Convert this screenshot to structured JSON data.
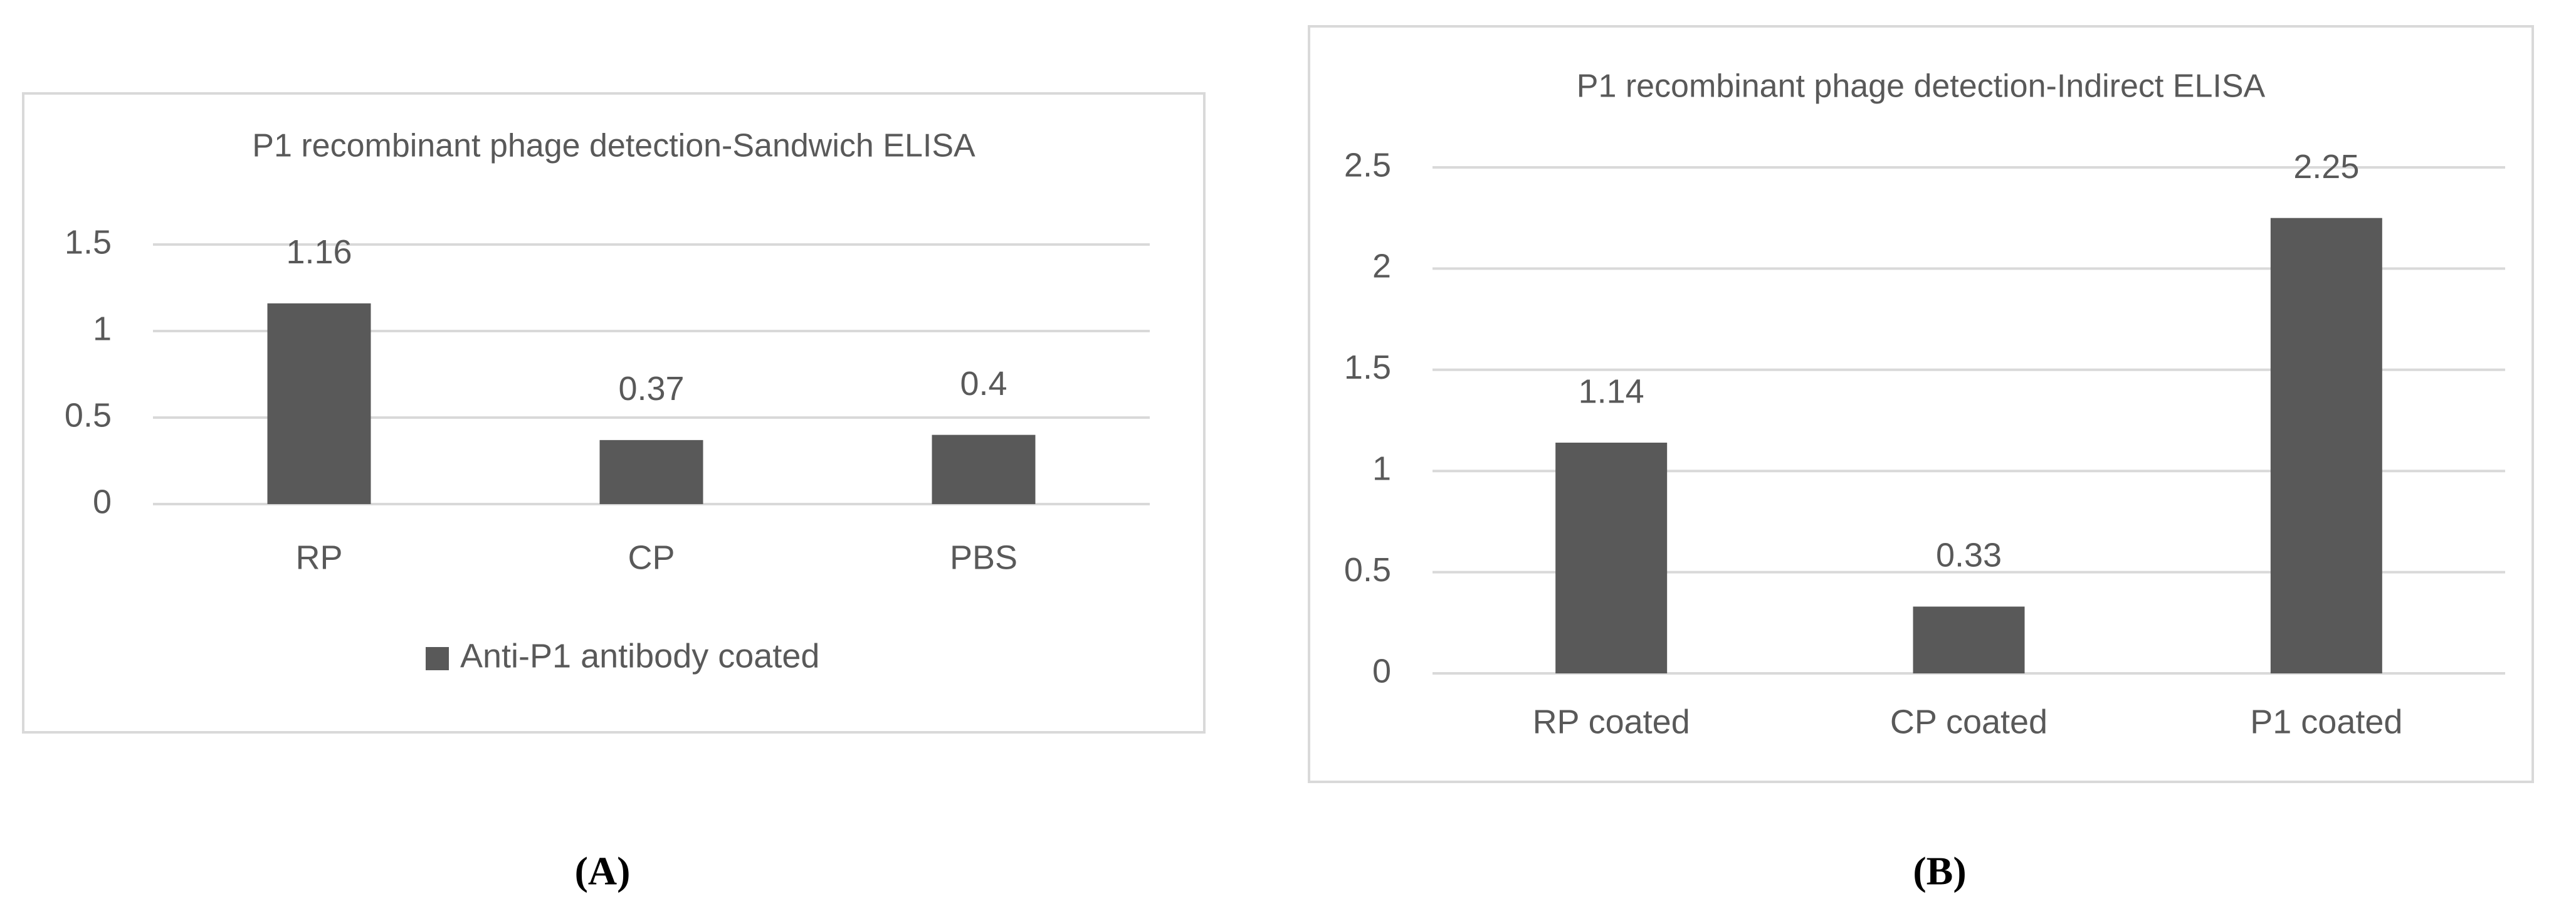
{
  "chart_data": [
    {
      "type": "bar",
      "title": "P1 recombinant phage detection-Sandwich ELISA",
      "panel_label": "(A)",
      "categories": [
        "RP",
        "CP",
        "PBS"
      ],
      "series": [
        {
          "name": "Anti-P1 antibody coated",
          "color": "#595959",
          "values": [
            1.16,
            0.37,
            0.4
          ]
        }
      ],
      "ylim": [
        0,
        1.5
      ],
      "yticks": [
        0,
        0.5,
        1,
        1.5
      ],
      "grid": true,
      "legend": "bottom",
      "data_labels": true
    },
    {
      "type": "bar",
      "title": "P1 recombinant phage detection-Indirect ELISA",
      "panel_label": "(B)",
      "categories": [
        "RP coated",
        "CP coated",
        "P1 coated"
      ],
      "values": [
        1.14,
        0.33,
        2.25
      ],
      "color": "#595959",
      "ylim": [
        0,
        2.5
      ],
      "yticks": [
        0,
        0.5,
        1,
        1.5,
        2,
        2.5
      ],
      "grid": true,
      "data_labels": true
    }
  ]
}
